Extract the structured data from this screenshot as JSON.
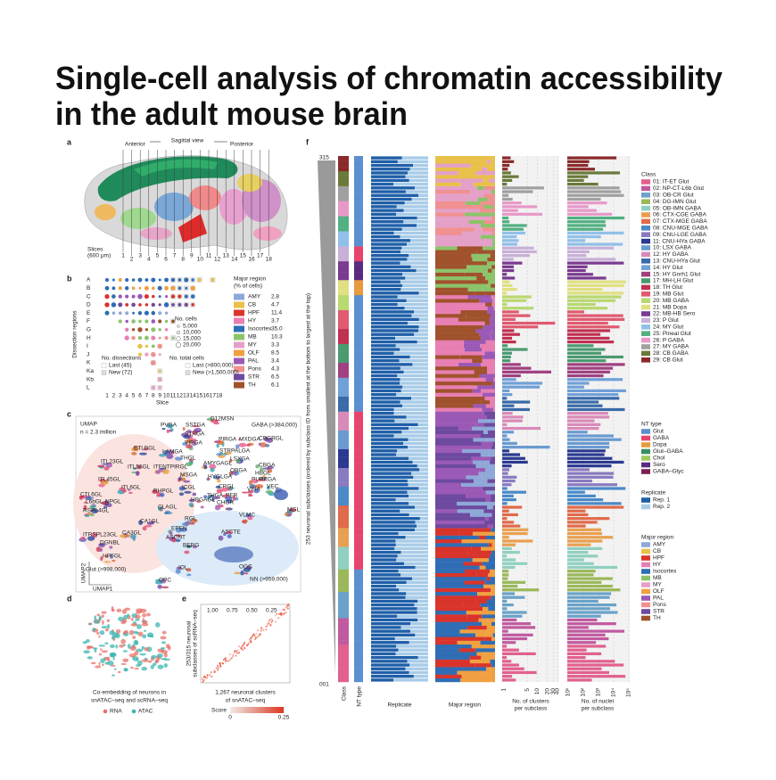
{
  "title": [
    "Single-cell analysis of chromatin accessibility",
    "in the adult mouse brain"
  ],
  "panels": {
    "a": {
      "label": "a",
      "anterior": "Anterior",
      "view": "Sagittal view",
      "posterior": "Posterior",
      "slices_label": [
        "Slices",
        "(600 μm)"
      ],
      "slices": [
        "1",
        "2",
        "3",
        "4",
        "5",
        "6",
        "7",
        "8",
        "9",
        "10",
        "11",
        "12",
        "13",
        "14",
        "15",
        "16",
        "17",
        "18"
      ]
    },
    "b": {
      "label": "b",
      "y_label": "Dissection regions",
      "x_label": "Slice",
      "rows": [
        "A",
        "B",
        "C",
        "D",
        "E",
        "F",
        "G",
        "H",
        "I",
        "J",
        "K",
        "Ka",
        "Kb",
        "L"
      ],
      "slices": [
        "1",
        "2",
        "3",
        "4",
        "5",
        "6",
        "7",
        "8",
        "9",
        "10",
        "11",
        "12",
        "13",
        "14",
        "15",
        "16",
        "17",
        "18"
      ],
      "region_title": [
        "Major region",
        "(% of cells)"
      ],
      "regions": [
        {
          "name": "AMY",
          "pct": "2.8",
          "color": "#8fa8d8"
        },
        {
          "name": "CB",
          "pct": "4.7",
          "color": "#e8c14a"
        },
        {
          "name": "HPF",
          "pct": "11.4",
          "color": "#d9342b"
        },
        {
          "name": "HY",
          "pct": "3.7",
          "color": "#e87fb3"
        },
        {
          "name": "Isocortex",
          "pct": "35.0",
          "color": "#2f6db5"
        },
        {
          "name": "MB",
          "pct": "10.3",
          "color": "#8cc36a"
        },
        {
          "name": "MY",
          "pct": "3.3",
          "color": "#e5a0c8"
        },
        {
          "name": "OLF",
          "pct": "8.5",
          "color": "#f0a040"
        },
        {
          "name": "PAL",
          "pct": "3.4",
          "color": "#9b59b6"
        },
        {
          "name": "Pons",
          "pct": "4.3",
          "color": "#f09090"
        },
        {
          "name": "STR",
          "pct": "6.5",
          "color": "#6d4aa0"
        },
        {
          "name": "TH",
          "pct": "6.1",
          "color": "#a0522d"
        }
      ],
      "cells_title": "No. cells",
      "cells": [
        "5,000",
        "10,000",
        "15,000",
        "20,000"
      ],
      "dissections_title": "No. dissections",
      "dissections": [
        "Last (45)",
        "New (72)"
      ],
      "total_title": "No. total cells",
      "total": [
        "Last (>800,000)",
        "New (>1,500,000)"
      ]
    },
    "c": {
      "label": "c",
      "umap": "UMAP",
      "n": "n = 2.3 million",
      "gaba": "GABA (>384,000)",
      "glut": "Glut (>998,000)",
      "nn": "NN (>959,000)",
      "umap2": "UMAP2",
      "umap1": "UMAP1",
      "clusters": [
        "PVGA",
        "SSTGA",
        "D12MSN",
        "STRGA",
        "VIPGA",
        "PIRGA",
        "MXDGA",
        "CBGRGL",
        "ETLBGL",
        "LAMGA",
        "THGL",
        "STRPALGA",
        "ITL23GL",
        "LSXGA",
        "ITL56GL",
        "ITENTPIRGL",
        "AMYGAGL",
        "CBGA",
        "ITL45GL",
        "ITL6GL",
        "RHPGL",
        "MSGA",
        "OBGA",
        "HBGL",
        "PURKGA",
        "VEC",
        "CTL6GL",
        "L6bGL",
        "NPGL",
        "ICGL",
        "HYGLGA",
        "CRGL",
        "VPIA",
        "RSPL4GL",
        "THGA",
        "PER",
        "CLAGL",
        "HBGAGL",
        "CHOR",
        "VLMC",
        "MGL",
        "CA1GL",
        "ITRSPL23GL",
        "CA3GL",
        "EPEN",
        "RGL",
        "ASCNT",
        "ASCTE",
        "BERG",
        "DGNBL",
        "HPFGL",
        "OGC",
        "IOL",
        "OPC"
      ]
    },
    "d": {
      "label": "d",
      "caption": [
        "Co-embedding of neurons in",
        "snATAC–seq and scRNA–seq"
      ],
      "legend": [
        {
          "name": "RNA",
          "color": "#e8706a"
        },
        {
          "name": "ATAC",
          "color": "#3fb5b0"
        }
      ]
    },
    "e": {
      "label": "e",
      "y_label": [
        "253/315 neuronal",
        "subclasses of scRNA–seq"
      ],
      "x_label": [
        "1,267 neuronal clusters",
        "of snATAC–seq"
      ],
      "top_ticks": [
        "1.00",
        "0.75",
        "0.50",
        "0.25"
      ],
      "score_label": "Score",
      "score_ticks": [
        "0",
        "0.25"
      ]
    },
    "f": {
      "label": "f",
      "top_id": "315",
      "bottom_id": "001",
      "y_label": "253 neuronal subclasses (ordered by subclass ID from smallest at the bottom to largest at the top)",
      "columns": {
        "class": "Class",
        "nt": "NT type",
        "replicate": "Replicate",
        "region": "Major region",
        "clusters": [
          "No. of clusters",
          "per subclass"
        ],
        "nuclei": [
          "No. of nuclei",
          "per subclass"
        ]
      },
      "cluster_ticks": [
        1,
        5,
        10,
        20,
        30,
        40
      ],
      "nuclei_ticks": [
        {
          "value": 10,
          "label": "10¹"
        },
        {
          "value": 100,
          "label": "10²"
        },
        {
          "value": 1000,
          "label": "10³"
        },
        {
          "value": 10000,
          "label": "10⁴"
        },
        {
          "value": 100000,
          "label": "10⁵"
        }
      ],
      "class_title": "Class",
      "classes": [
        {
          "name": "01: IT-ET Glut",
          "color": "#e2608f"
        },
        {
          "name": "02: NP-CT-L6b Glut",
          "color": "#c05aa0"
        },
        {
          "name": "03: OB-CR Glut",
          "color": "#6aa2c8"
        },
        {
          "name": "04: DG-IMN Glut",
          "color": "#9ab85a"
        },
        {
          "name": "05: OB-IMN GABA",
          "color": "#8fd0c0"
        },
        {
          "name": "06: CTX-CGE GABA",
          "color": "#e8a050"
        },
        {
          "name": "07: CTX-MGE GABA",
          "color": "#e06a4a"
        },
        {
          "name": "08: CNU-MGE GABA",
          "color": "#4a8ac8"
        },
        {
          "name": "09: CNU-LGE GABA",
          "color": "#8a7ac0"
        },
        {
          "name": "11: CNU-HYa GABA",
          "color": "#2a3a90"
        },
        {
          "name": "10: LSX GABA",
          "color": "#6a9ad0"
        },
        {
          "name": "12: HY GABA",
          "color": "#d88ab8"
        },
        {
          "name": "13: CNU-HYa Glut",
          "color": "#3a6aa8"
        },
        {
          "name": "14: HY Glut",
          "color": "#70a0d8"
        },
        {
          "name": "15: HY Gnrh1 Glut",
          "color": "#a04080"
        },
        {
          "name": "17: MH-LH Glut",
          "color": "#4a9a70"
        },
        {
          "name": "18: TH Glut",
          "color": "#c03050"
        },
        {
          "name": "19: MB Glut",
          "color": "#e05a70"
        },
        {
          "name": "20: MB GABA",
          "color": "#b8d870"
        },
        {
          "name": "21: MB Dopa",
          "color": "#e0e080"
        },
        {
          "name": "22: MB-HB Sero",
          "color": "#7a3a90"
        },
        {
          "name": "23: P Glut",
          "color": "#c8b0d8"
        },
        {
          "name": "24: MY Glut",
          "color": "#90c0e8"
        },
        {
          "name": "25: Pineal Glut",
          "color": "#50b080"
        },
        {
          "name": "26: P GABA",
          "color": "#e898c8"
        },
        {
          "name": "27: MY GABA",
          "color": "#a0a0a0"
        },
        {
          "name": "28: CB GABA",
          "color": "#6a7a3a"
        },
        {
          "name": "29: CB Glut",
          "color": "#8a2a2a"
        }
      ],
      "nt_title": "NT type",
      "nt": [
        {
          "name": "Glut",
          "color": "#5b8fd0"
        },
        {
          "name": "GABA",
          "color": "#e8436c"
        },
        {
          "name": "Dopa",
          "color": "#e89a3c"
        },
        {
          "name": "Glut–GABA",
          "color": "#3a8f60"
        },
        {
          "name": "Chol",
          "color": "#a0c860"
        },
        {
          "name": "Sero",
          "color": "#5a2a80"
        },
        {
          "name": "GABA–Glyc",
          "color": "#7a2050"
        }
      ],
      "replicate_title": "Replicate",
      "replicates": [
        {
          "name": "Rep. 1",
          "color": "#1f5fa8"
        },
        {
          "name": "Rep. 2",
          "color": "#a8cce8"
        }
      ],
      "region_title": "Major region",
      "regions": [
        {
          "name": "AMY",
          "color": "#8fa8d8"
        },
        {
          "name": "CB",
          "color": "#e8c14a"
        },
        {
          "name": "HPF",
          "color": "#d9342b"
        },
        {
          "name": "HY",
          "color": "#e87fb3"
        },
        {
          "name": "Isocortex",
          "color": "#2f6db5"
        },
        {
          "name": "MB",
          "color": "#8cc36a"
        },
        {
          "name": "MY",
          "color": "#e5a0c8"
        },
        {
          "name": "OLF",
          "color": "#f0a040"
        },
        {
          "name": "PAL",
          "color": "#9b59b6"
        },
        {
          "name": "Pons",
          "color": "#f09090"
        },
        {
          "name": "STR",
          "color": "#6d4aa0"
        },
        {
          "name": "TH",
          "color": "#a0522d"
        }
      ]
    }
  }
}
